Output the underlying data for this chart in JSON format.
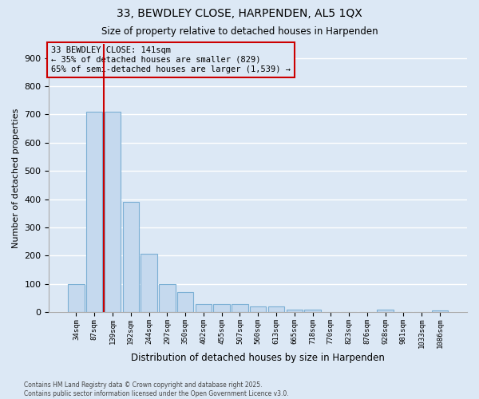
{
  "title1": "33, BEWDLEY CLOSE, HARPENDEN, AL5 1QX",
  "title2": "Size of property relative to detached houses in Harpenden",
  "xlabel": "Distribution of detached houses by size in Harpenden",
  "ylabel": "Number of detached properties",
  "categories": [
    "34sqm",
    "87sqm",
    "139sqm",
    "192sqm",
    "244sqm",
    "297sqm",
    "350sqm",
    "402sqm",
    "455sqm",
    "507sqm",
    "560sqm",
    "613sqm",
    "665sqm",
    "718sqm",
    "770sqm",
    "823sqm",
    "876sqm",
    "928sqm",
    "981sqm",
    "1033sqm",
    "1086sqm"
  ],
  "values": [
    100,
    710,
    710,
    390,
    207,
    100,
    72,
    30,
    30,
    30,
    20,
    20,
    8,
    8,
    0,
    0,
    0,
    10,
    0,
    0,
    5
  ],
  "bar_color": "#c5d9ee",
  "bar_edge_color": "#7bafd4",
  "bg_color": "#dce8f5",
  "grid_color": "#ffffff",
  "vline_x": 1.5,
  "vline_color": "#cc0000",
  "annotation_text": "33 BEWDLEY CLOSE: 141sqm\n← 35% of detached houses are smaller (829)\n65% of semi-detached houses are larger (1,539) →",
  "annotation_box_color": "#cc0000",
  "footer": "Contains HM Land Registry data © Crown copyright and database right 2025.\nContains public sector information licensed under the Open Government Licence v3.0.",
  "ylim": [
    0,
    950
  ],
  "yticks": [
    0,
    100,
    200,
    300,
    400,
    500,
    600,
    700,
    800,
    900
  ]
}
